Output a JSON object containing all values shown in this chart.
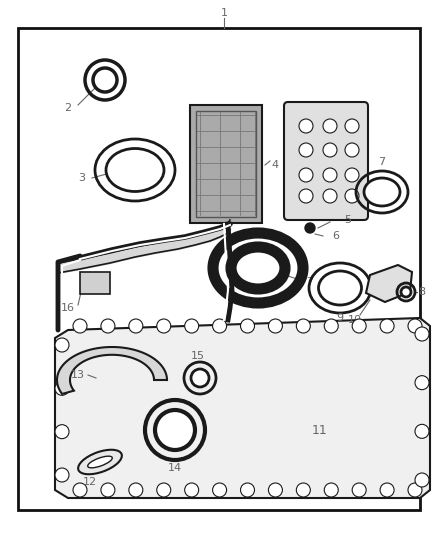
{
  "bg_color": "#ffffff",
  "border_color": "#111111",
  "line_color": "#1a1a1a",
  "label_color": "#666666",
  "figsize": [
    4.38,
    5.33
  ],
  "dpi": 100
}
